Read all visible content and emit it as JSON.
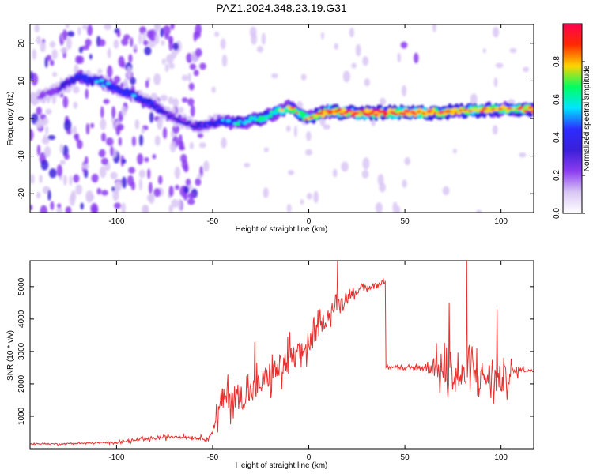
{
  "figure": {
    "title": "PAZ1.2024.348.23.19.G31"
  },
  "colors": {
    "snr_line": "#e8302e",
    "frame": "#000000",
    "colormap": [
      "#ffffff",
      "#d9c7f5",
      "#8c3cf0",
      "#3a1fd9",
      "#2c2cff",
      "#00e5ff",
      "#00ff60",
      "#ffd400",
      "#ff2a00",
      "#ff0050"
    ]
  },
  "chart_data": [
    {
      "type": "heatmap",
      "title": "",
      "xlabel": "Height of straight line (km)",
      "ylabel": "Frequency (Hz)",
      "xlim": [
        -145,
        117
      ],
      "ylim": [
        -25,
        25
      ],
      "xticks": [
        -100,
        -50,
        0,
        50,
        100
      ],
      "yticks": [
        -20,
        -10,
        0,
        10,
        20
      ],
      "colorbar": {
        "label": "Normalized spectral amplitude",
        "range": [
          0.0,
          1.0
        ],
        "ticks": [
          "0.0",
          "0.2",
          "0.4",
          "0.6",
          "0.8"
        ]
      },
      "ridge": {
        "x": [
          -143,
          -130,
          -120,
          -110,
          -100,
          -90,
          -82,
          -76,
          -70,
          -64,
          -58,
          -50,
          -42,
          -35,
          -25,
          -15,
          -10,
          0,
          10,
          20,
          40,
          60,
          80,
          100,
          117
        ],
        "frequency": [
          5,
          8,
          11,
          10,
          8,
          6,
          4,
          2,
          0,
          -1,
          -2,
          -1,
          -1,
          -1,
          0,
          2,
          3,
          0,
          2,
          1.5,
          1.5,
          1.5,
          2,
          2.5,
          2.5
        ],
        "amplitude": [
          0.15,
          0.3,
          0.45,
          0.5,
          0.45,
          0.45,
          0.4,
          0.35,
          0.3,
          0.3,
          0.35,
          0.4,
          0.5,
          0.55,
          0.65,
          0.7,
          0.75,
          0.8,
          0.85,
          0.9,
          0.95,
          0.9,
          0.85,
          0.8,
          0.85
        ]
      },
      "grid": false
    },
    {
      "type": "line",
      "title": "",
      "xlabel": "Height of straight line (km)",
      "ylabel": "SNR (10 * v/v)",
      "xlim": [
        -145,
        117
      ],
      "ylim": [
        0,
        5800
      ],
      "xticks": [
        -100,
        -50,
        0,
        50,
        100
      ],
      "yticks": [
        1000,
        2000,
        3000,
        4000,
        5000
      ],
      "series": [
        {
          "x": [
            -145,
            -130,
            -115,
            -100,
            -90,
            -80,
            -70,
            -60,
            -52,
            -50,
            -47,
            -45,
            -40,
            -35,
            -30,
            -25,
            -20,
            -15,
            -10,
            -5,
            0,
            5,
            10,
            15,
            20,
            25,
            30,
            35,
            40,
            41,
            45,
            50,
            55,
            60,
            65,
            70,
            75,
            80,
            85,
            90,
            95,
            100,
            105,
            110,
            117
          ],
          "values": [
            150,
            150,
            170,
            200,
            260,
            320,
            380,
            350,
            300,
            600,
            1100,
            1500,
            1650,
            1600,
            1750,
            2000,
            2300,
            2500,
            2700,
            2900,
            3200,
            3700,
            4100,
            4450,
            4700,
            4850,
            4950,
            5050,
            5150,
            2550,
            2550,
            2450,
            2500,
            2500,
            2550,
            2350,
            2300,
            2200,
            2300,
            2250,
            2200,
            2100,
            2300,
            2450,
            2400
          ],
          "noise": [
            30,
            40,
            40,
            60,
            80,
            100,
            120,
            100,
            100,
            300,
            700,
            800,
            900,
            900,
            900,
            900,
            900,
            900,
            900,
            800,
            700,
            600,
            500,
            400,
            300,
            200,
            200,
            150,
            150,
            100,
            150,
            150,
            150,
            300,
            700,
            1000,
            1100,
            1100,
            1100,
            1100,
            1000,
            1000,
            600,
            150,
            100
          ],
          "spikes": [
            {
              "x": 15,
              "value": 5800
            },
            {
              "x": 82,
              "value": 5800
            },
            {
              "x": -28,
              "value": 3300
            },
            {
              "x": -10,
              "value": 3600
            },
            {
              "x": 73,
              "value": 4500
            },
            {
              "x": 98,
              "value": 4300
            }
          ]
        }
      ],
      "grid": false
    }
  ]
}
